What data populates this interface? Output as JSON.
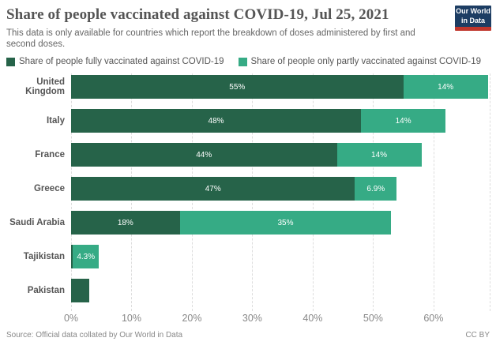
{
  "header": {
    "title": "Share of people vaccinated against COVID-19, Jul 25, 2021",
    "subtitle": "This data is only available for countries which report the breakdown of doses administered by first and second doses.",
    "logo": {
      "line1": "Our World",
      "line2": "in Data"
    }
  },
  "colors": {
    "fully": "#266349",
    "partly": "#36ab85",
    "logo_bg": "#1d3d63",
    "logo_stripe": "#c0362c"
  },
  "legend": {
    "items": [
      {
        "series": "fully",
        "label": "Share of people fully vaccinated against COVID-19"
      },
      {
        "series": "partly",
        "label": "Share of people only partly vaccinated against COVID-19"
      }
    ]
  },
  "chart_data": {
    "type": "bar",
    "orientation": "horizontal",
    "stacked": true,
    "title": "Share of people vaccinated against COVID-19, Jul 25, 2021",
    "xlim": [
      0,
      69.3
    ],
    "grid": "dashed-vertical",
    "x_ticks": [
      {
        "value": 0,
        "label": "0%"
      },
      {
        "value": 10,
        "label": "10%"
      },
      {
        "value": 20,
        "label": "20%"
      },
      {
        "value": 30,
        "label": "30%"
      },
      {
        "value": 40,
        "label": "40%"
      },
      {
        "value": 50,
        "label": "50%"
      },
      {
        "value": 60,
        "label": "60%"
      },
      {
        "value": 69.3,
        "label": ""
      }
    ],
    "series_names": [
      "fully",
      "partly"
    ],
    "rows": [
      {
        "country": "United Kingdom",
        "segments": [
          {
            "series": "fully",
            "value": 55,
            "label": "55%"
          },
          {
            "series": "partly",
            "value": 14,
            "label": "14%"
          }
        ]
      },
      {
        "country": "Italy",
        "segments": [
          {
            "series": "fully",
            "value": 48,
            "label": "48%"
          },
          {
            "series": "partly",
            "value": 14,
            "label": "14%"
          }
        ]
      },
      {
        "country": "France",
        "segments": [
          {
            "series": "fully",
            "value": 44,
            "label": "44%"
          },
          {
            "series": "partly",
            "value": 14,
            "label": "14%"
          }
        ]
      },
      {
        "country": "Greece",
        "segments": [
          {
            "series": "fully",
            "value": 47,
            "label": "47%"
          },
          {
            "series": "partly",
            "value": 6.9,
            "label": "6.9%"
          }
        ]
      },
      {
        "country": "Saudi Arabia",
        "segments": [
          {
            "series": "fully",
            "value": 18,
            "label": "18%"
          },
          {
            "series": "partly",
            "value": 35,
            "label": "35%"
          }
        ]
      },
      {
        "country": "Tajikistan",
        "segments": [
          {
            "series": "fully",
            "value": 0.3,
            "label": ""
          },
          {
            "series": "partly",
            "value": 4.3,
            "label": "4.3%"
          }
        ]
      },
      {
        "country": "Pakistan",
        "segments": [
          {
            "series": "fully",
            "value": 3,
            "label": ""
          }
        ]
      }
    ]
  },
  "footer": {
    "source": "Source: Official data collated by Our World in Data",
    "license": "CC BY"
  }
}
